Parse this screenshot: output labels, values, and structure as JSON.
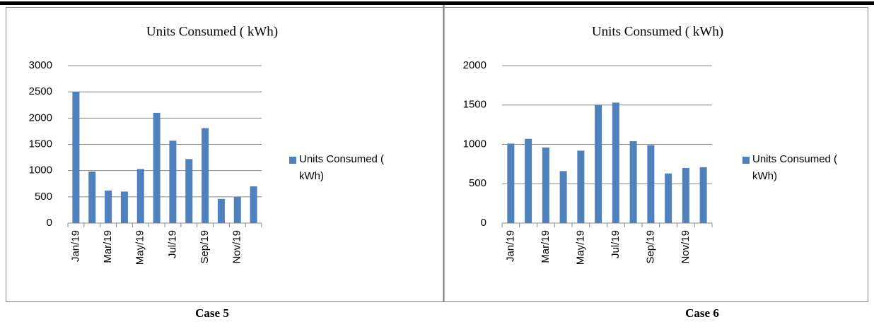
{
  "chart_data": [
    {
      "type": "bar",
      "title": "Units Consumed ( kWh)",
      "categories": [
        "Jan/19",
        null,
        "Mar/19",
        null,
        "May/19",
        null,
        "Jul/19",
        null,
        "Sep/19",
        null,
        "Nov/19",
        null
      ],
      "series": [
        {
          "name": "Units Consumed ( kWh)",
          "color": "#4f81bd",
          "values": [
            2500,
            980,
            620,
            600,
            1030,
            2100,
            1570,
            1220,
            1810,
            460,
            500,
            700
          ]
        }
      ],
      "ylim": [
        0,
        3000
      ],
      "yticks": [
        0,
        500,
        1000,
        1500,
        2000,
        2500,
        3000
      ],
      "grid": true,
      "legend": "right"
    },
    {
      "type": "bar",
      "title": "Units Consumed ( kWh)",
      "categories": [
        "Jan/19",
        null,
        "Mar/19",
        null,
        "May/19",
        null,
        "Jul/19",
        null,
        "Sep/19",
        null,
        "Nov/19",
        null
      ],
      "series": [
        {
          "name": "Units Consumed ( kWh)",
          "color": "#4f81bd",
          "values": [
            1010,
            1070,
            960,
            660,
            920,
            1500,
            1530,
            1040,
            990,
            630,
            700,
            710
          ]
        }
      ],
      "ylim": [
        0,
        2000
      ],
      "yticks": [
        0,
        500,
        1000,
        1500,
        2000
      ],
      "grid": true,
      "legend": "right"
    }
  ],
  "captions": [
    "Case 5",
    "Case 6"
  ]
}
